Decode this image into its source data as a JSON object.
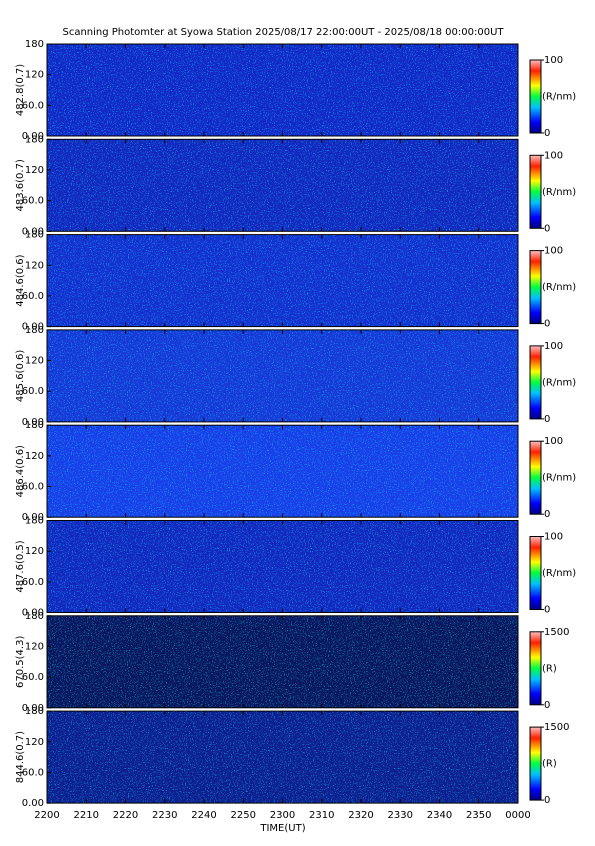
{
  "title": "Scanning Photomter at Syowa Station 2025/08/17 22:00:00UT - 2025/08/18 00:00:00UT",
  "xlabel": "TIME(UT)",
  "xlim": [
    0,
    120
  ],
  "xticks": [
    {
      "value": 0,
      "label": "2200"
    },
    {
      "value": 10,
      "label": "2210"
    },
    {
      "value": 20,
      "label": "2220"
    },
    {
      "value": 30,
      "label": "2230"
    },
    {
      "value": 40,
      "label": "2240"
    },
    {
      "value": 50,
      "label": "2250"
    },
    {
      "value": 60,
      "label": "2300"
    },
    {
      "value": 70,
      "label": "2310"
    },
    {
      "value": 80,
      "label": "2320"
    },
    {
      "value": 90,
      "label": "2330"
    },
    {
      "value": 100,
      "label": "2340"
    },
    {
      "value": 110,
      "label": "2350"
    },
    {
      "value": 120,
      "label": "0000"
    }
  ],
  "chart_data": [
    {
      "type": "heatmap",
      "ylabel": "482.8(0.7)",
      "color": "#1428c8",
      "ylim": [
        0,
        180
      ],
      "yticks": [
        {
          "value": 0,
          "label": "0.00"
        },
        {
          "value": 60,
          "label": "60.0"
        },
        120,
        180
      ],
      "colorbar": {
        "label": "(R/nm)",
        "lim": [
          0,
          100
        ],
        "ticks": [
          0,
          100
        ]
      }
    },
    {
      "type": "heatmap",
      "ylabel": "483.6(0.7)",
      "color": "#1428c0",
      "ylim": [
        0,
        180
      ],
      "yticks": [
        {
          "value": 0,
          "label": "0.00"
        },
        {
          "value": 60,
          "label": "60.0"
        },
        120,
        180
      ],
      "colorbar": {
        "label": "(R/nm)",
        "lim": [
          0,
          100
        ],
        "ticks": [
          0,
          100
        ]
      }
    },
    {
      "type": "heatmap",
      "ylabel": "484.6(0.6)",
      "color": "#1630d0",
      "ylim": [
        0,
        180
      ],
      "yticks": [
        {
          "value": 0,
          "label": "0.00"
        },
        {
          "value": 60,
          "label": "60.0"
        },
        120,
        180
      ],
      "colorbar": {
        "label": "(R/nm)",
        "lim": [
          0,
          100
        ],
        "ticks": [
          0,
          100
        ]
      }
    },
    {
      "type": "heatmap",
      "ylabel": "485.6(0.6)",
      "color": "#1838d8",
      "ylim": [
        0,
        180
      ],
      "yticks": [
        {
          "value": 0,
          "label": "0.00"
        },
        {
          "value": 60,
          "label": "60.0"
        },
        120,
        180
      ],
      "colorbar": {
        "label": "(R/nm)",
        "lim": [
          0,
          100
        ],
        "ticks": [
          0,
          100
        ]
      }
    },
    {
      "type": "heatmap",
      "ylabel": "486.4(0.6)",
      "color": "#1a3ee8",
      "ylim": [
        0,
        180
      ],
      "yticks": [
        {
          "value": 0,
          "label": "0.00"
        },
        {
          "value": 60,
          "label": "60.0"
        },
        120,
        180
      ],
      "colorbar": {
        "label": "(R/nm)",
        "lim": [
          0,
          100
        ],
        "ticks": [
          0,
          100
        ]
      }
    },
    {
      "type": "heatmap",
      "ylabel": "487.6(0.5)",
      "color": "#1428c0",
      "ylim": [
        0,
        180
      ],
      "yticks": [
        {
          "value": 0,
          "label": "0.00"
        },
        {
          "value": 60,
          "label": "60.0"
        },
        120,
        180
      ],
      "colorbar": {
        "label": "(R/nm)",
        "lim": [
          0,
          100
        ],
        "ticks": [
          0,
          100
        ]
      }
    },
    {
      "type": "heatmap",
      "ylabel": "670.5(4.3)",
      "color": "#0c1660",
      "ylim": [
        0,
        180
      ],
      "yticks": [
        {
          "value": 0,
          "label": "0.00"
        },
        {
          "value": 60,
          "label": "60.0"
        },
        120,
        180
      ],
      "colorbar": {
        "label": "(R)",
        "lim": [
          0,
          1500
        ],
        "ticks": [
          0,
          1500
        ]
      }
    },
    {
      "type": "heatmap",
      "ylabel": "844.6(0.7)",
      "color": "#0f1e90",
      "ylim": [
        0,
        180
      ],
      "yticks": [
        {
          "value": 0,
          "label": "0.00"
        },
        {
          "value": 60,
          "label": "60.0"
        },
        120,
        180
      ],
      "colorbar": {
        "label": "(R)",
        "lim": [
          0,
          1500
        ],
        "ticks": [
          0,
          1500
        ]
      }
    }
  ]
}
